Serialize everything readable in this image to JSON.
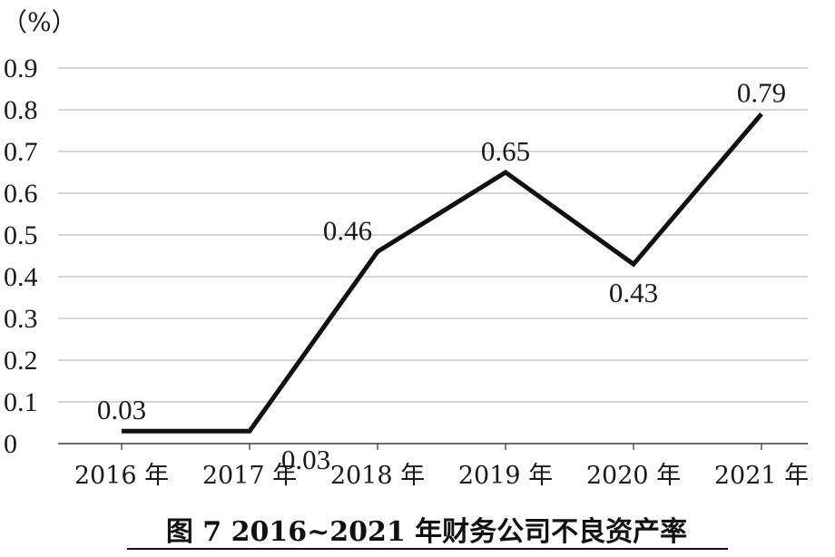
{
  "figure": {
    "caption": "图 7  2016~2021 年财务公司不良资产率"
  },
  "chart_data": {
    "type": "line",
    "title": "",
    "unit": "（%）",
    "xlabel": "",
    "ylabel": "",
    "categories": [
      "2016 年",
      "2017 年",
      "2018 年",
      "2019 年",
      "2020 年",
      "2021 年"
    ],
    "values": [
      0.03,
      0.03,
      0.46,
      0.65,
      0.43,
      0.79
    ],
    "data_labels": [
      "0.03",
      "0.03",
      "0.46",
      "0.65",
      "0.43",
      "0.79"
    ],
    "data_label_positions": [
      "above",
      "below",
      "above",
      "above",
      "below",
      "above"
    ],
    "ylim": [
      0,
      0.9
    ],
    "yticks": [
      0,
      0.1,
      0.2,
      0.3,
      0.4,
      0.5,
      0.6,
      0.7,
      0.8,
      0.9
    ],
    "ytick_labels": [
      "0",
      "0.1",
      "0.2",
      "0.3",
      "0.4",
      "0.5",
      "0.6",
      "0.7",
      "0.8",
      "0.9"
    ],
    "grid": true,
    "legend": "none",
    "line_color": "#111111",
    "grid_color": "#c8c8c8"
  }
}
